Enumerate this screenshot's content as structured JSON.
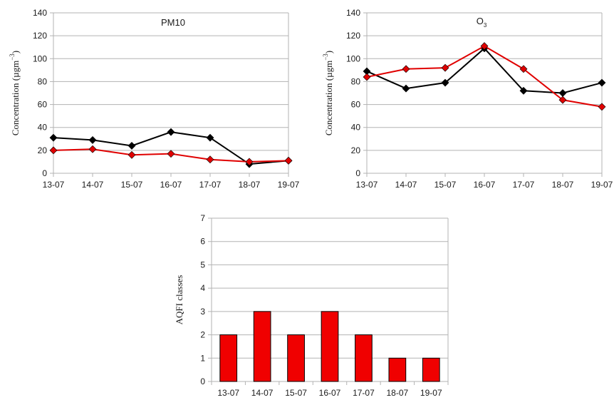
{
  "chart_data": [
    {
      "type": "line",
      "title": "PM10",
      "ylabel": {
        "text": "Concentration (µgm",
        "sup": "−3",
        "tail": ")"
      },
      "categories": [
        "13-07",
        "14-07",
        "15-07",
        "16-07",
        "17-07",
        "18-07",
        "19-07"
      ],
      "ylim": [
        0,
        140
      ],
      "yticks": [
        0,
        20,
        40,
        60,
        80,
        100,
        120,
        140
      ],
      "grid": true,
      "series": [
        {
          "color": "#000000",
          "values": [
            31,
            29,
            24,
            36,
            31,
            8,
            11
          ]
        },
        {
          "color": "#e00000",
          "values": [
            20,
            21,
            16,
            17,
            12,
            10,
            11
          ]
        }
      ]
    },
    {
      "type": "line",
      "title": {
        "text": "O",
        "sub": "3"
      },
      "ylabel": {
        "text": "Concentration (µgm",
        "sup": "−3",
        "tail": ")"
      },
      "categories": [
        "13-07",
        "14-07",
        "15-07",
        "16-07",
        "17-07",
        "18-07",
        "19-07"
      ],
      "ylim": [
        0,
        140
      ],
      "yticks": [
        0,
        20,
        40,
        60,
        80,
        100,
        120,
        140
      ],
      "grid": true,
      "series": [
        {
          "color": "#000000",
          "values": [
            89,
            74,
            79,
            109,
            72,
            70,
            79
          ]
        },
        {
          "color": "#e00000",
          "values": [
            84,
            91,
            92,
            111,
            91,
            64,
            58
          ]
        }
      ]
    },
    {
      "type": "bar",
      "ylabel": "AQFI classes",
      "categories": [
        "13-07",
        "14-07",
        "15-07",
        "16-07",
        "17-07",
        "18-07",
        "19-07"
      ],
      "ylim": [
        0,
        7
      ],
      "yticks": [
        0,
        1,
        2,
        3,
        4,
        5,
        6,
        7
      ],
      "grid": true,
      "color": "#f00000",
      "values": [
        2,
        3,
        2,
        3,
        2,
        1,
        1
      ]
    }
  ]
}
